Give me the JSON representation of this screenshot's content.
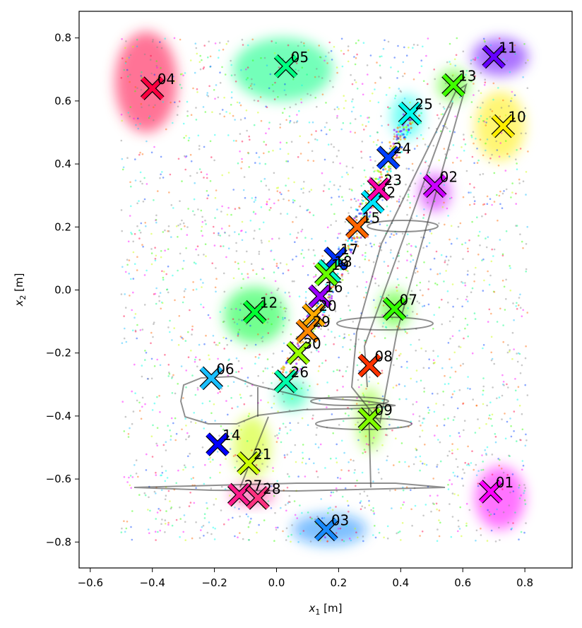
{
  "chart_data": {
    "type": "scatter",
    "title": "",
    "xlabel_main": "x",
    "xlabel_sub": "1",
    "xlabel_unit": " [m]",
    "ylabel_main": "x",
    "ylabel_sub": "2",
    "ylabel_unit": " [m]",
    "xlim": [
      -0.62,
      0.93
    ],
    "ylim": [
      -0.89,
      0.88
    ],
    "xticks": [
      -0.6,
      -0.4,
      -0.2,
      0.0,
      0.2,
      0.4,
      0.6,
      0.8
    ],
    "xtick_labels": [
      "−0.6",
      "−0.4",
      "−0.2",
      "0.0",
      "0.2",
      "0.4",
      "0.6",
      "0.8"
    ],
    "yticks": [
      0.8,
      0.6,
      0.4,
      0.2,
      0.0,
      -0.2,
      -0.4,
      -0.6,
      -0.8
    ],
    "ytick_labels": [
      "0.8",
      "0.6",
      "0.4",
      "0.2",
      "0.0",
      "−0.2",
      "−0.4",
      "−0.6",
      "−0.8"
    ],
    "grid": false,
    "legend": "none",
    "markers": [
      {
        "label": "01",
        "x": 0.69,
        "y": -0.64,
        "color": "#ff00ff"
      },
      {
        "label": "02",
        "x": 0.51,
        "y": 0.33,
        "color": "#cc00ff"
      },
      {
        "label": "03",
        "x": 0.16,
        "y": -0.76,
        "color": "#1a8cff"
      },
      {
        "label": "04",
        "x": -0.4,
        "y": 0.64,
        "color": "#ff0040"
      },
      {
        "label": "05",
        "x": 0.03,
        "y": 0.71,
        "color": "#00ff80"
      },
      {
        "label": "06",
        "x": -0.21,
        "y": -0.28,
        "color": "#1abfff"
      },
      {
        "label": "07",
        "x": 0.38,
        "y": -0.06,
        "color": "#33ff00"
      },
      {
        "label": "08",
        "x": 0.3,
        "y": -0.24,
        "color": "#ff3300"
      },
      {
        "label": "09",
        "x": 0.3,
        "y": -0.41,
        "color": "#80ff00"
      },
      {
        "label": "10",
        "x": 0.73,
        "y": 0.52,
        "color": "#ffee00"
      },
      {
        "label": "11",
        "x": 0.7,
        "y": 0.74,
        "color": "#6600ff"
      },
      {
        "label": "12",
        "x": -0.07,
        "y": -0.07,
        "color": "#00ff33"
      },
      {
        "label": "13",
        "x": 0.57,
        "y": 0.65,
        "color": "#40ff00"
      },
      {
        "label": "14",
        "x": -0.19,
        "y": -0.49,
        "color": "#0000ff"
      },
      {
        "label": "15",
        "x": 0.26,
        "y": 0.2,
        "color": "#ff6600"
      },
      {
        "label": "16",
        "x": 0.14,
        "y": -0.02,
        "color": "#9900ff"
      },
      {
        "label": "17",
        "x": 0.19,
        "y": 0.1,
        "color": "#0033ff"
      },
      {
        "label": "18",
        "x": 0.17,
        "y": 0.06,
        "color": "#00ffcc"
      },
      {
        "label": "19",
        "x": 0.16,
        "y": 0.05,
        "color": "#66ff00"
      },
      {
        "label": "20",
        "x": 0.12,
        "y": -0.08,
        "color": "#ffaa00"
      },
      {
        "label": "21",
        "x": -0.09,
        "y": -0.55,
        "color": "#ccff00"
      },
      {
        "label": "22",
        "x": 0.31,
        "y": 0.28,
        "color": "#00e6ff"
      },
      {
        "label": "23",
        "x": 0.33,
        "y": 0.32,
        "color": "#ff00aa"
      },
      {
        "label": "24",
        "x": 0.36,
        "y": 0.42,
        "color": "#0040ff"
      },
      {
        "label": "25",
        "x": 0.43,
        "y": 0.56,
        "color": "#00ffee"
      },
      {
        "label": "26",
        "x": 0.03,
        "y": -0.29,
        "color": "#00ffaa"
      },
      {
        "label": "27",
        "x": -0.12,
        "y": -0.65,
        "color": "#ff1a8c"
      },
      {
        "label": "28",
        "x": -0.06,
        "y": -0.66,
        "color": "#ff3380"
      },
      {
        "label": "29",
        "x": 0.1,
        "y": -0.13,
        "color": "#ff8800"
      },
      {
        "label": "30",
        "x": 0.07,
        "y": -0.2,
        "color": "#99ff00"
      }
    ]
  }
}
